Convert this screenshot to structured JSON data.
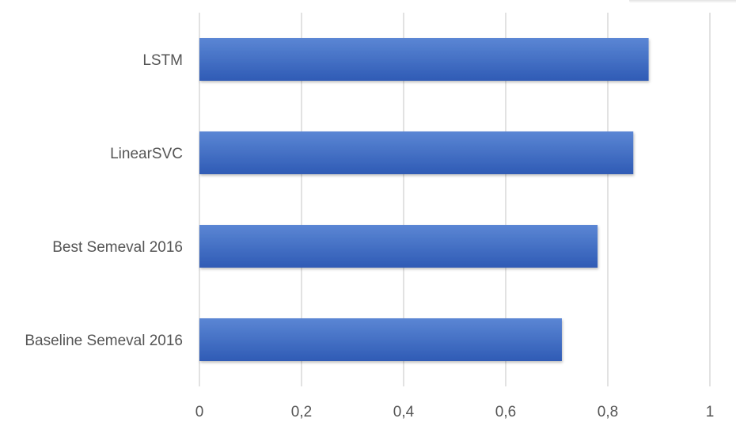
{
  "chart_data": {
    "type": "bar",
    "orientation": "horizontal",
    "categories": [
      "LSTM",
      "LinearSVC",
      "Best Semeval 2016",
      "Baseline Semeval 2016"
    ],
    "values": [
      0.88,
      0.85,
      0.78,
      0.71
    ],
    "xlim": [
      0,
      1
    ],
    "x_ticks": [
      0,
      0.2,
      0.4,
      0.6,
      0.8,
      1
    ],
    "x_tick_labels": [
      "0",
      "0,2",
      "0,4",
      "0,6",
      "0,8",
      "1"
    ],
    "title": "",
    "xlabel": "",
    "ylabel": "",
    "grid": "vertical",
    "legend": "none",
    "colors": {
      "bar_top": "#5b86d4",
      "bar_bottom": "#2f5bb5",
      "grid": "#d9d9d9",
      "text": "#555555"
    }
  }
}
